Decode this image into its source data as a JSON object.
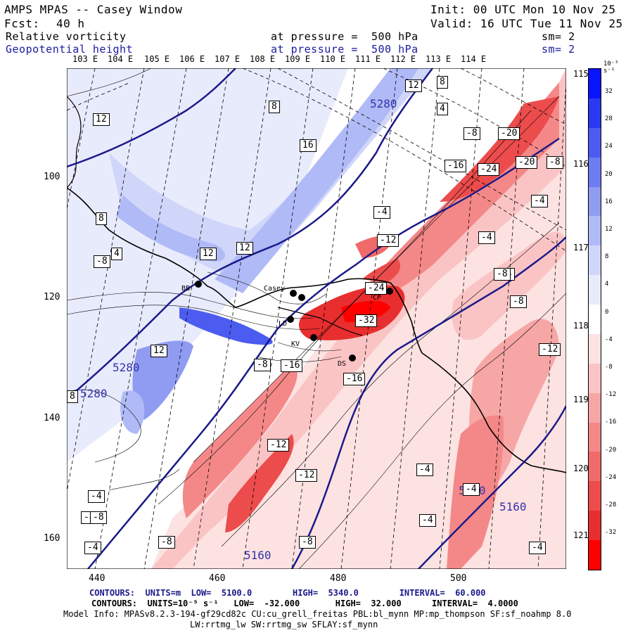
{
  "header": {
    "title": "AMPS MPAS -- Casey Window",
    "fcst_label": "Fcst:",
    "fcst_value": "40 h",
    "init": "Init: 00 UTC Mon 10 Nov 25",
    "valid": "Valid: 16 UTC Tue 11 Nov 25",
    "field1_name": "Relative vorticity",
    "field1_level": "at pressure =  500 hPa",
    "field1_sm": "sm= 2",
    "field2_name": "Geopotential height",
    "field2_level": "at pressure =  500 hPa",
    "field2_sm": "sm= 2"
  },
  "longitude_labels": [
    "103 E",
    "104 E",
    "105 E",
    "106 E",
    "107 E",
    "108 E",
    "109 E",
    "110 E",
    "111 E",
    "112 E",
    "113 E",
    "114 E"
  ],
  "latitude_labels_right": [
    "115 E",
    "116 E",
    "117 E",
    "118 E",
    "119 E",
    "120 E",
    "121 E"
  ],
  "y_axis_ticks": [
    "100",
    "120",
    "140",
    "160"
  ],
  "x_axis_ticks": [
    "440",
    "460",
    "480",
    "500"
  ],
  "colorbar": {
    "unit": "10⁻⁵ s⁻¹",
    "ticks": [
      "32",
      "28",
      "24",
      "20",
      "16",
      "12",
      "8",
      "4",
      "0",
      "-4",
      "-8",
      "-12",
      "-16",
      "-20",
      "-24",
      "-28",
      "-32"
    ],
    "colors": [
      "#0a14ff",
      "#2a3af0",
      "#4c5cf0",
      "#6d7cf0",
      "#8f9cf2",
      "#b0baf6",
      "#d0d6fa",
      "#e8ebfc",
      "#ffffff",
      "#fde2e2",
      "#fbc4c4",
      "#f7a6a6",
      "#f48888",
      "#f06a6a",
      "#ec4c4c",
      "#e82e2e",
      "#ff0000"
    ]
  },
  "contour_labels": [
    "12",
    "8",
    "4",
    "5280",
    "8",
    "12",
    "-8",
    "-20",
    "-16",
    "-24",
    "-20",
    "-8",
    "16",
    "12",
    "-4",
    "-4",
    "-12",
    "-4",
    "12",
    "-24",
    "-8",
    "-32",
    "-4",
    "-12",
    "12",
    "-8",
    "-16",
    "-16",
    "5280",
    "8",
    "5280",
    "-12",
    "-4",
    "-12",
    "5160",
    "-8",
    "-4",
    "-4",
    "-8",
    "-4",
    "-4",
    "-8",
    "-8",
    "5160",
    "8",
    "4",
    "-8",
    "5160",
    "-8",
    "-4"
  ],
  "stations": [
    "BB",
    "Casey",
    "CP",
    "LD",
    "KV",
    "DS"
  ],
  "footer": {
    "line1": "CONTOURS:  UNITS=m  LOW=  5100.0        HIGH=  5340.0        INTERVAL=  60.000",
    "line2": "CONTOURS:  UNITS=10⁻⁵ s⁻¹   LOW=  -32.000       HIGH=  32.000      INTERVAL=  4.0000",
    "line3": "Model Info: MPASv8.2.3-194-gf29cd82c CU:cu_grell_freitas PBL:bl_mynn MP:mp_thompson SF:sf_noahmp 8.0",
    "line4": "LW:rrtmg_lw SW:rrtmg_sw SFLAY:sf_mynn"
  }
}
